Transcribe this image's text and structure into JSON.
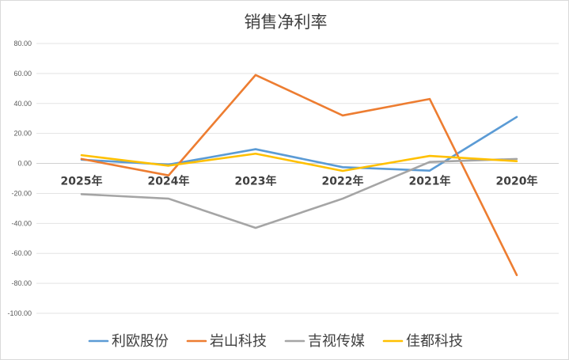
{
  "chart_data": {
    "type": "line",
    "title": "销售净利率",
    "categories": [
      "2025年",
      "2024年",
      "2023年",
      "2022年",
      "2021年",
      "2020年"
    ],
    "ylim": [
      -100,
      80
    ],
    "yticks": [
      "80.00",
      "60.00",
      "40.00",
      "20.00",
      "0.00",
      "-20.00",
      "-40.00",
      "-60.00",
      "-80.00",
      "-100.00"
    ],
    "grid": true,
    "legend_position": "bottom",
    "series": [
      {
        "name": "利欧股份",
        "color": "#5B9BD5",
        "values": [
          2.5,
          -0.8,
          9.5,
          -2.5,
          -4.8,
          31.0
        ]
      },
      {
        "name": "岩山科技",
        "color": "#ED7D31",
        "values": [
          3.0,
          -8.0,
          59.0,
          32.0,
          43.0,
          -74.5
        ]
      },
      {
        "name": "吉视传媒",
        "color": "#A5A5A5",
        "values": [
          -20.5,
          -23.5,
          -43.0,
          -23.5,
          1.0,
          3.0
        ]
      },
      {
        "name": "佳都科技",
        "color": "#FFC000",
        "values": [
          5.5,
          -1.5,
          6.5,
          -5.0,
          5.0,
          1.5
        ]
      }
    ]
  }
}
